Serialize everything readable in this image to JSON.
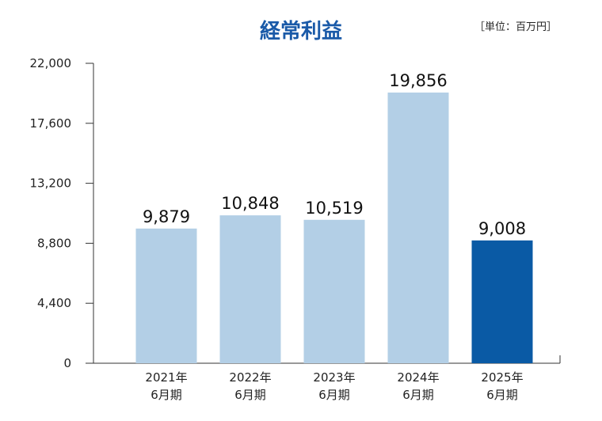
{
  "chart_data": {
    "type": "bar",
    "title": "経常利益",
    "unit_note": "［単位：百万円］",
    "categories": [
      [
        "2021年",
        "6月期"
      ],
      [
        "2022年",
        "6月期"
      ],
      [
        "2023年",
        "6月期"
      ],
      [
        "2024年",
        "6月期"
      ],
      [
        "2025年",
        "6月期"
      ]
    ],
    "values": [
      9879,
      10848,
      10519,
      19856,
      9008
    ],
    "value_labels": [
      "9,879",
      "10,848",
      "10,519",
      "19,856",
      "9,008"
    ],
    "yticks": [
      0,
      4400,
      8800,
      13200,
      17600,
      22000
    ],
    "ytick_labels": [
      "0",
      "4,400",
      "8,800",
      "13,200",
      "17,600",
      "22,000"
    ],
    "ylim": [
      0,
      22000
    ],
    "grid": false,
    "colors": {
      "bar": "#b3cfe6",
      "highlight": "#0a5aa5",
      "axis": "#333333",
      "title": "#1a5aa8"
    },
    "highlight_index": 4
  }
}
